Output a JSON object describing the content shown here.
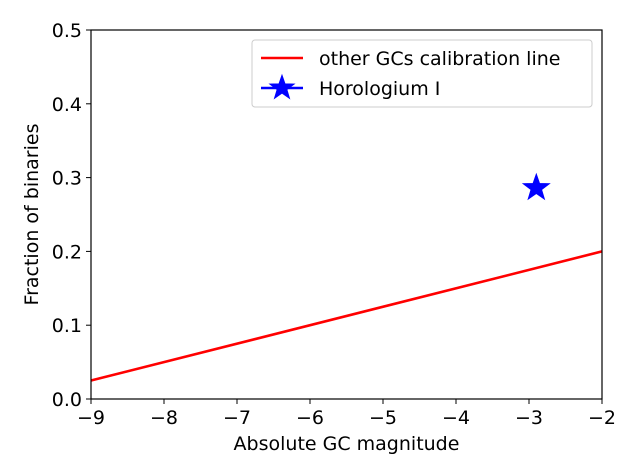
{
  "chart_data": {
    "type": "line",
    "title": "",
    "xlabel": "Absolute GC magnitude",
    "ylabel": "Fraction of binaries",
    "xlim": [
      -9,
      -2
    ],
    "ylim": [
      0,
      0.5
    ],
    "xticks": [
      -9,
      -8,
      -7,
      -6,
      -5,
      -4,
      -3,
      -2
    ],
    "yticks": [
      0.0,
      0.1,
      0.2,
      0.3,
      0.4,
      0.5
    ],
    "xtick_labels": [
      "−9",
      "−8",
      "−7",
      "−6",
      "−5",
      "−4",
      "−3",
      "−2"
    ],
    "ytick_labels": [
      "0.0",
      "0.1",
      "0.2",
      "0.3",
      "0.4",
      "0.5"
    ],
    "grid": false,
    "legend_position": "top-right",
    "series": [
      {
        "name": "other GCs calibration line",
        "kind": "line",
        "color": "#ff0000",
        "x": [
          -9,
          -2
        ],
        "y": [
          0.025,
          0.2
        ]
      },
      {
        "name": "Horologium I",
        "kind": "marker",
        "marker": "star",
        "color": "#0000ff",
        "x": [
          -2.9
        ],
        "y": [
          0.286
        ]
      }
    ]
  }
}
